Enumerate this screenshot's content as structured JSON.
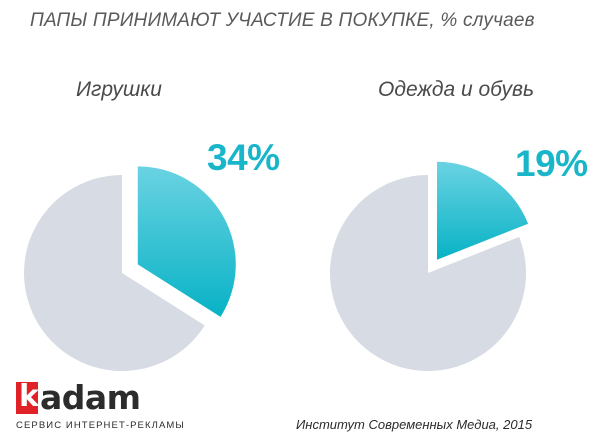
{
  "title": "ПАПЫ ПРИНИМАЮТ УЧАСТИЕ В ПОКУПКЕ, % случаев",
  "chart_data": [
    {
      "type": "pie",
      "title": "Игрушки",
      "slices": [
        {
          "label": "",
          "value": 34,
          "display": "34%",
          "highlighted": true
        },
        {
          "label": "",
          "value": 66,
          "display": "",
          "highlighted": false
        }
      ]
    },
    {
      "type": "pie",
      "title": "Одежда и обувь",
      "slices": [
        {
          "label": "",
          "value": 19,
          "display": "19%",
          "highlighted": true
        },
        {
          "label": "",
          "value": 81,
          "display": "",
          "highlighted": false
        }
      ]
    }
  ],
  "colors": {
    "accent_light": "#5ccfe0",
    "accent_dark": "#0fb4c8",
    "rest": "#d6dbe4",
    "percent_text": "#19b6c9",
    "logo_red": "#e02127"
  },
  "logo": {
    "mark": "k",
    "word": "adam",
    "tagline": "СЕРВИС ИНТЕРНЕТ-РЕКЛАМЫ"
  },
  "source": "Институт Современных Медиа, 2015"
}
